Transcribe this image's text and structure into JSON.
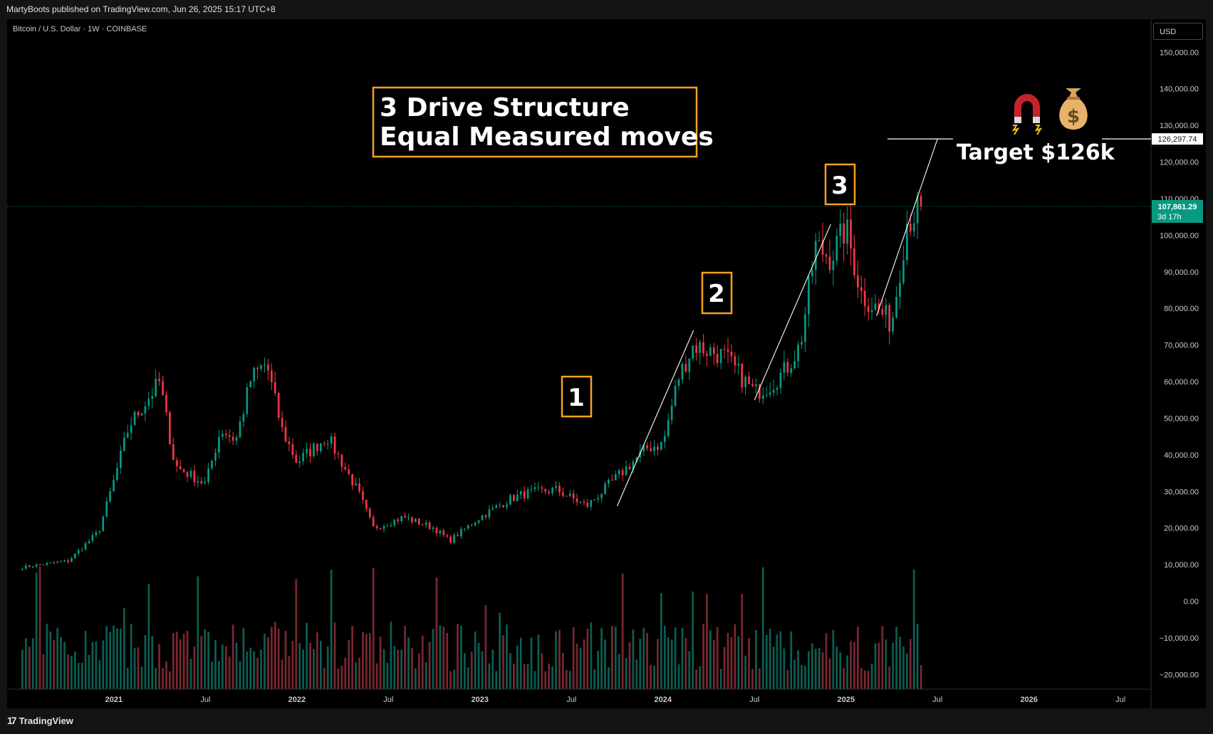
{
  "header": {
    "published": "MartyBoots published on TradingView.com, Jun 26, 2025 15:17 UTC+8",
    "symbol": "Bitcoin / U.S. Dollar · 1W · COINBASE",
    "currency_button": "USD"
  },
  "footer": {
    "brand": "TradingView",
    "logo_glyph": "17"
  },
  "colors": {
    "up": "#089981",
    "down": "#f23645",
    "accent_box": "#f7a21b",
    "background": "#000000"
  },
  "annotations": {
    "title_line1": "3 Drive Structure",
    "title_line2": "Equal Measured moves",
    "drive_labels": [
      "1",
      "2",
      "3"
    ],
    "target_label": "Target $126k",
    "target_price_tag": "126,297.74",
    "last_price_tag": "107,861.29",
    "countdown_tag": "3d 17h",
    "icons": [
      "magnet-icon",
      "money-bag-icon"
    ]
  },
  "chart_data": {
    "type": "candlestick",
    "title": "Bitcoin / U.S. Dollar · 1W · COINBASE",
    "y_ticks": [
      "150,000.00",
      "140,000.00",
      "130,000.00",
      "120,000.00",
      "110,000.00",
      "100,000.00",
      "90,000.00",
      "80,000.00",
      "70,000.00",
      "60,000.00",
      "50,000.00",
      "40,000.00",
      "30,000.00",
      "20,000.00",
      "10,000.00",
      "0.00",
      "−10,000.00",
      "−20,000.00"
    ],
    "y_tick_values": [
      150000,
      140000,
      130000,
      120000,
      110000,
      100000,
      90000,
      80000,
      70000,
      60000,
      50000,
      40000,
      30000,
      20000,
      10000,
      0,
      -10000,
      -20000
    ],
    "x_ticks": [
      "2021",
      "Jul",
      "2022",
      "Jul",
      "2023",
      "Jul",
      "2024",
      "Jul",
      "2025",
      "Jul",
      "2026",
      "Jul"
    ],
    "x_tick_dates": [
      "2021-01",
      "2021-07",
      "2022-01",
      "2022-07",
      "2023-01",
      "2023-07",
      "2024-01",
      "2024-07",
      "2025-01",
      "2025-07",
      "2026-01",
      "2026-07"
    ],
    "ylim": [
      -24000,
      159000
    ],
    "xlim": [
      "2020-06",
      "2026-09"
    ],
    "price_path_keypoints": [
      [
        "2020-07",
        9300
      ],
      [
        "2020-10",
        11000
      ],
      [
        "2020-12",
        19000
      ],
      [
        "2021-01",
        33000
      ],
      [
        "2021-02",
        48000
      ],
      [
        "2021-04",
        60000
      ],
      [
        "2021-05",
        37000
      ],
      [
        "2021-07",
        32000
      ],
      [
        "2021-08",
        47000
      ],
      [
        "2021-09",
        44000
      ],
      [
        "2021-10",
        61000
      ],
      [
        "2021-11",
        65000
      ],
      [
        "2021-12",
        47000
      ],
      [
        "2022-01",
        38000
      ],
      [
        "2022-03",
        45000
      ],
      [
        "2022-05",
        30000
      ],
      [
        "2022-06",
        20000
      ],
      [
        "2022-08",
        23000
      ],
      [
        "2022-10",
        20000
      ],
      [
        "2022-11",
        16500
      ],
      [
        "2023-01",
        23000
      ],
      [
        "2023-03",
        28000
      ],
      [
        "2023-04",
        29500
      ],
      [
        "2023-06",
        30500
      ],
      [
        "2023-08",
        26000
      ],
      [
        "2023-10",
        34000
      ],
      [
        "2023-12",
        42000
      ],
      [
        "2024-01",
        43000
      ],
      [
        "2024-02",
        61000
      ],
      [
        "2024-03",
        70000
      ],
      [
        "2024-05",
        67000
      ],
      [
        "2024-06",
        62000
      ],
      [
        "2024-07",
        57000
      ],
      [
        "2024-08",
        59000
      ],
      [
        "2024-09",
        63000
      ],
      [
        "2024-10",
        70000
      ],
      [
        "2024-11",
        97000
      ],
      [
        "2024-12",
        94000
      ],
      [
        "2025-01",
        102000
      ],
      [
        "2025-02",
        84000
      ],
      [
        "2025-04",
        76000
      ],
      [
        "2025-05",
        104000
      ],
      [
        "2025-06",
        107861
      ]
    ],
    "last_price": 107861.29,
    "target_price": 126297.74,
    "drive_lines": [
      {
        "from": [
          "2023-10",
          26000
        ],
        "to": [
          "2024-03",
          74000
        ]
      },
      {
        "from": [
          "2024-07",
          55000
        ],
        "to": [
          "2024-12",
          103000
        ]
      },
      {
        "from": [
          "2025-03",
          78000
        ],
        "to": [
          "2025-07",
          126297.74
        ]
      }
    ]
  }
}
